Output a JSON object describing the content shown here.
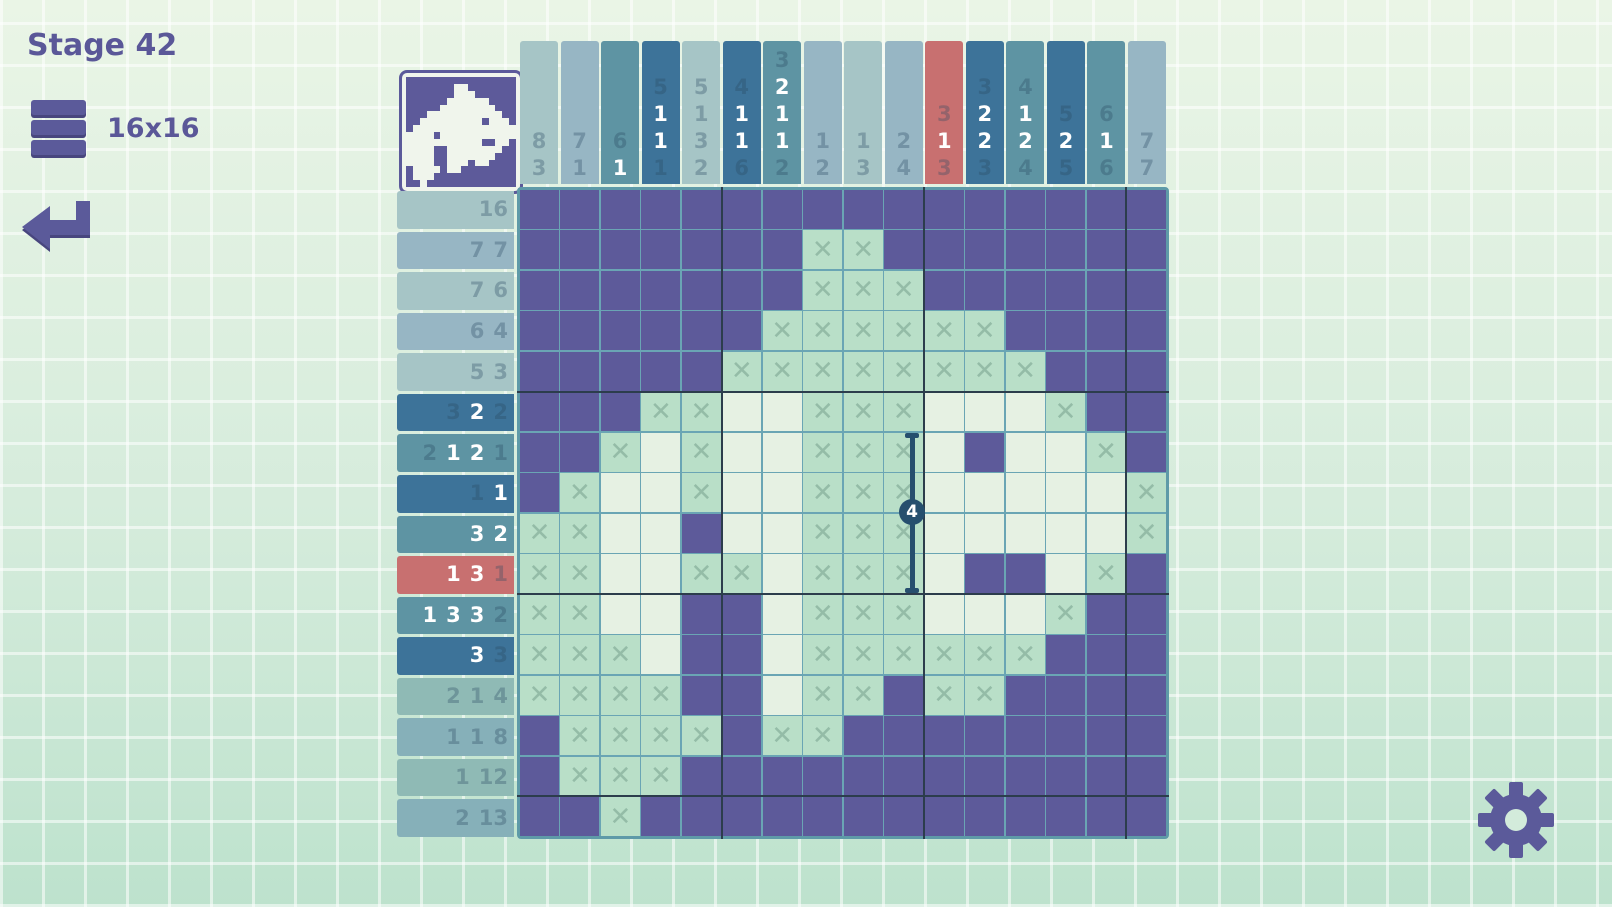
{
  "header": {
    "stage_title": "Stage 42",
    "size_label": "16x16"
  },
  "icons": {
    "menu": "menu-icon",
    "back": "return-arrow-icon",
    "settings": "gear-icon"
  },
  "colors": {
    "filled": "#5d5a9a",
    "crossed": "#b9dfc8",
    "empty": "#e6f1e3",
    "highlight": "#c87070",
    "active_blue": "#3d7399",
    "active_teal": "#5e94a3",
    "light": "#a6c5c6",
    "light2": "#97b6c4"
  },
  "column_clues": [
    {
      "style": "light",
      "nums": [
        {
          "n": "8",
          "on": false
        },
        {
          "n": "3",
          "on": false
        }
      ]
    },
    {
      "style": "light2",
      "nums": [
        {
          "n": "7",
          "on": false
        },
        {
          "n": "1",
          "on": false
        }
      ]
    },
    {
      "style": "teal",
      "nums": [
        {
          "n": "6",
          "on": false
        },
        {
          "n": "1",
          "on": true
        }
      ]
    },
    {
      "style": "blue",
      "nums": [
        {
          "n": "5",
          "on": false
        },
        {
          "n": "1",
          "on": true
        },
        {
          "n": "1",
          "on": true
        },
        {
          "n": "1",
          "on": false
        }
      ]
    },
    {
      "style": "light",
      "nums": [
        {
          "n": "5",
          "on": false
        },
        {
          "n": "1",
          "on": false
        },
        {
          "n": "3",
          "on": false
        },
        {
          "n": "2",
          "on": false
        }
      ]
    },
    {
      "style": "blue",
      "nums": [
        {
          "n": "4",
          "on": false
        },
        {
          "n": "1",
          "on": true
        },
        {
          "n": "1",
          "on": true
        },
        {
          "n": "6",
          "on": false
        }
      ]
    },
    {
      "style": "teal",
      "nums": [
        {
          "n": "3",
          "on": false
        },
        {
          "n": "2",
          "on": true
        },
        {
          "n": "1",
          "on": true
        },
        {
          "n": "1",
          "on": true
        },
        {
          "n": "2",
          "on": false
        }
      ]
    },
    {
      "style": "light2",
      "nums": [
        {
          "n": "1",
          "on": false
        },
        {
          "n": "2",
          "on": false
        }
      ]
    },
    {
      "style": "light",
      "nums": [
        {
          "n": "1",
          "on": false
        },
        {
          "n": "3",
          "on": false
        }
      ]
    },
    {
      "style": "light2",
      "nums": [
        {
          "n": "2",
          "on": false
        },
        {
          "n": "4",
          "on": false
        }
      ]
    },
    {
      "style": "red",
      "nums": [
        {
          "n": "3",
          "on": false
        },
        {
          "n": "1",
          "on": true
        },
        {
          "n": "3",
          "on": false
        }
      ]
    },
    {
      "style": "blue",
      "nums": [
        {
          "n": "3",
          "on": false
        },
        {
          "n": "2",
          "on": true
        },
        {
          "n": "2",
          "on": true
        },
        {
          "n": "3",
          "on": false
        }
      ]
    },
    {
      "style": "teal",
      "nums": [
        {
          "n": "4",
          "on": false
        },
        {
          "n": "1",
          "on": true
        },
        {
          "n": "2",
          "on": true
        },
        {
          "n": "4",
          "on": false
        }
      ]
    },
    {
      "style": "blue",
      "nums": [
        {
          "n": "5",
          "on": false
        },
        {
          "n": "2",
          "on": true
        },
        {
          "n": "5",
          "on": false
        }
      ]
    },
    {
      "style": "teal",
      "nums": [
        {
          "n": "6",
          "on": false
        },
        {
          "n": "1",
          "on": true
        },
        {
          "n": "6",
          "on": false
        }
      ]
    },
    {
      "style": "light2",
      "nums": [
        {
          "n": "7",
          "on": false
        },
        {
          "n": "7",
          "on": false
        }
      ]
    }
  ],
  "row_clues": [
    {
      "style": "light",
      "nums": [
        {
          "n": "16",
          "on": false
        }
      ]
    },
    {
      "style": "light2",
      "nums": [
        {
          "n": "7",
          "on": false
        },
        {
          "n": "7",
          "on": false
        }
      ]
    },
    {
      "style": "light",
      "nums": [
        {
          "n": "7",
          "on": false
        },
        {
          "n": "6",
          "on": false
        }
      ]
    },
    {
      "style": "light2",
      "nums": [
        {
          "n": "6",
          "on": false
        },
        {
          "n": "4",
          "on": false
        }
      ]
    },
    {
      "style": "light",
      "nums": [
        {
          "n": "5",
          "on": false
        },
        {
          "n": "3",
          "on": false
        }
      ]
    },
    {
      "style": "blue",
      "nums": [
        {
          "n": "3",
          "on": false
        },
        {
          "n": "2",
          "on": true
        },
        {
          "n": "2",
          "on": false
        }
      ]
    },
    {
      "style": "teal",
      "nums": [
        {
          "n": "2",
          "on": false
        },
        {
          "n": "1",
          "on": true
        },
        {
          "n": "2",
          "on": true
        },
        {
          "n": "1",
          "on": false
        }
      ]
    },
    {
      "style": "blue",
      "nums": [
        {
          "n": "1",
          "on": false
        },
        {
          "n": "1",
          "on": true
        }
      ]
    },
    {
      "style": "teal",
      "nums": [
        {
          "n": "3",
          "on": true
        },
        {
          "n": "2",
          "on": true
        }
      ]
    },
    {
      "style": "red",
      "nums": [
        {
          "n": "1",
          "on": true
        },
        {
          "n": "3",
          "on": true
        },
        {
          "n": "1",
          "on": false
        }
      ]
    },
    {
      "style": "teal",
      "nums": [
        {
          "n": "1",
          "on": true
        },
        {
          "n": "3",
          "on": true
        },
        {
          "n": "3",
          "on": true
        },
        {
          "n": "2",
          "on": false
        }
      ]
    },
    {
      "style": "blue",
      "nums": [
        {
          "n": "3",
          "on": true
        },
        {
          "n": "3",
          "on": false
        }
      ]
    },
    {
      "style": "lteal",
      "nums": [
        {
          "n": "2",
          "on": false
        },
        {
          "n": "1",
          "on": false
        },
        {
          "n": "4",
          "on": false
        }
      ]
    },
    {
      "style": "lteal2",
      "nums": [
        {
          "n": "1",
          "on": false
        },
        {
          "n": "1",
          "on": false
        },
        {
          "n": "8",
          "on": false
        }
      ]
    },
    {
      "style": "lteal",
      "nums": [
        {
          "n": "1",
          "on": false
        },
        {
          "n": "12",
          "on": false
        }
      ]
    },
    {
      "style": "lteal2",
      "nums": [
        {
          "n": "2",
          "on": false
        },
        {
          "n": "13",
          "on": false
        }
      ]
    }
  ],
  "grid": [
    "FFFFFFFFFFFFFFFF",
    "FFFFFFFXXFFFFFFF",
    "FFFFFFFXXXFFFFFF",
    "FFFFFFXXXXXXFFFF",
    "FFFFFXXXXXXXXFFF",
    "FFFXXWWXXXWWWXFF",
    "FFXWXWWXXXWFWWXF",
    "FXWWXWWXXXWWWWWX",
    "XXWWFWWXXXWWWWWX",
    "XXWWXXWXXXWFFWXF",
    "XXWWFFWXXXWWWXFF",
    "XXXWFFWXXXXXXFFF",
    "XXXXFFWXXFXXFFFF",
    "FXXXXFXXFFFFFFFF",
    "FXXXFFFFFFFFFFFF",
    "FFXFFFFFFFFFFFFF"
  ],
  "drag_indicator": {
    "count": "4"
  }
}
